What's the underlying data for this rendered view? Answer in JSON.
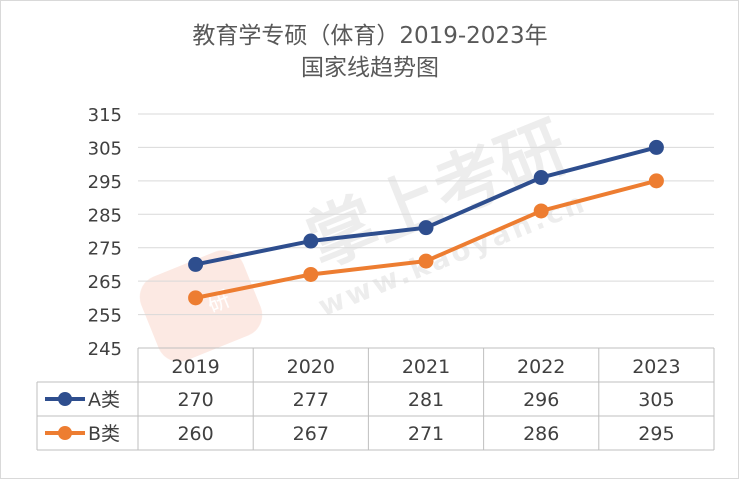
{
  "chart_data": {
    "type": "line",
    "title": "教育学专硕（体育）2019-2023年",
    "subtitle": "国家线趋势图",
    "categories": [
      "2019",
      "2020",
      "2021",
      "2022",
      "2023"
    ],
    "series": [
      {
        "name": "A类",
        "values": [
          270,
          277,
          281,
          296,
          305
        ],
        "color": "#2E4E8E"
      },
      {
        "name": "B类",
        "values": [
          260,
          267,
          271,
          286,
          295
        ],
        "color": "#ED7D31"
      }
    ],
    "ylim": [
      245,
      315
    ],
    "yticks": [
      315,
      305,
      295,
      285,
      275,
      265,
      255,
      245
    ],
    "grid": true,
    "legend": "data-table",
    "watermark": {
      "brand": "掌上考研",
      "url": "www.kaoyan.cn",
      "badge_char": "研"
    }
  }
}
